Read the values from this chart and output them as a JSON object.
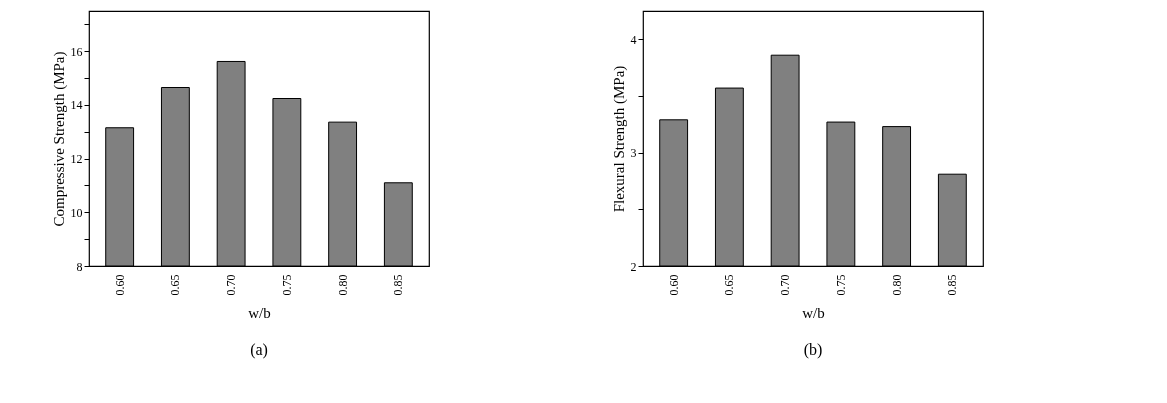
{
  "chart_data": [
    {
      "type": "bar",
      "categories": [
        "0.60",
        "0.65",
        "0.70",
        "0.75",
        "0.80",
        "0.85"
      ],
      "values": [
        13.15,
        14.65,
        15.62,
        14.24,
        13.36,
        11.1
      ],
      "color": "#808080",
      "xlabel": "w/b",
      "ylabel": "Compressive Strength (MPa)",
      "ylim": [
        8,
        17.5
      ],
      "yticks": [
        8,
        {
          "value": 9,
          "label": null
        },
        10,
        {
          "value": 11,
          "label": null
        },
        12,
        {
          "value": 13,
          "label": null
        },
        14,
        {
          "value": 15,
          "label": null
        },
        16,
        {
          "value": 17,
          "label": null
        }
      ],
      "grid": false,
      "annotations": [
        "(a)"
      ]
    },
    {
      "type": "bar",
      "categories": [
        "0.60",
        "0.65",
        "0.70",
        "0.75",
        "0.80",
        "0.85"
      ],
      "values": [
        3.29,
        3.57,
        3.86,
        3.27,
        3.23,
        2.81
      ],
      "color": "#808080",
      "xlabel": "w/b",
      "ylabel": "Flexural Strength (MPa)",
      "ylim": [
        2,
        4.25
      ],
      "yticks": [
        2,
        {
          "value": 2.5,
          "label": null
        },
        3,
        {
          "value": 3.5,
          "label": null
        },
        4
      ],
      "grid": false,
      "annotations": [
        "(b)"
      ]
    }
  ]
}
